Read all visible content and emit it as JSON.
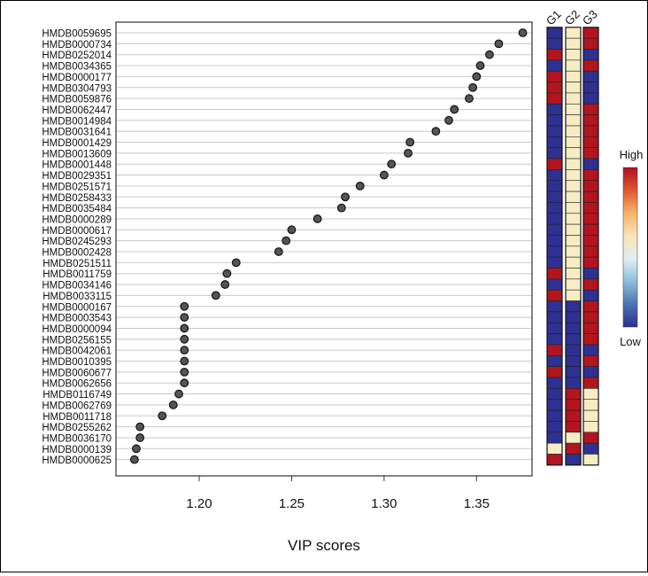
{
  "chart_data": {
    "type": "scatter",
    "xlabel": "VIP scores",
    "xlim": [
      1.155,
      1.38
    ],
    "xticks": [
      1.2,
      1.25,
      1.3,
      1.35
    ],
    "xtick_labels": [
      "1.20",
      "1.25",
      "1.30",
      "1.35"
    ],
    "grid": "horizontal",
    "metabolites": [
      "HMDB0059695",
      "HMDB0000734",
      "HMDB0252014",
      "HMDB0034365",
      "HMDB0000177",
      "HMDB0304793",
      "HMDB0059876",
      "HMDB0062447",
      "HMDB0014984",
      "HMDB0031641",
      "HMDB0001429",
      "HMDB0013609",
      "HMDB0001448",
      "HMDB0029351",
      "HMDB0251571",
      "HMDB0258433",
      "HMDB0035484",
      "HMDB0000289",
      "HMDB0000617",
      "HMDB0245293",
      "HMDB0002428",
      "HMDB0251511",
      "HMDB0011759",
      "HMDB0034146",
      "HMDB0033115",
      "HMDB0000167",
      "HMDB0003543",
      "HMDB0000094",
      "HMDB0256155",
      "HMDB0042061",
      "HMDB0010395",
      "HMDB0060677",
      "HMDB0062656",
      "HMDB0116749",
      "HMDB0062769",
      "HMDB0011718",
      "HMDB0255262",
      "HMDB0036170",
      "HMDB0000139",
      "HMDB0000625"
    ],
    "vip_scores": [
      1.375,
      1.362,
      1.357,
      1.352,
      1.35,
      1.348,
      1.346,
      1.338,
      1.335,
      1.328,
      1.314,
      1.313,
      1.304,
      1.3,
      1.287,
      1.279,
      1.277,
      1.264,
      1.25,
      1.247,
      1.243,
      1.22,
      1.215,
      1.214,
      1.209,
      1.192,
      1.192,
      1.192,
      1.192,
      1.192,
      1.192,
      1.192,
      1.192,
      1.189,
      1.186,
      1.18,
      1.168,
      1.168,
      1.166,
      1.165
    ],
    "heatmap": {
      "columns": [
        "G1",
        "G2",
        "G3"
      ],
      "values": [
        [
          0.1,
          0.5,
          0.9
        ],
        [
          0.1,
          0.5,
          0.9
        ],
        [
          0.9,
          0.5,
          0.1
        ],
        [
          0.1,
          0.5,
          0.9
        ],
        [
          0.9,
          0.5,
          0.1
        ],
        [
          0.9,
          0.5,
          0.1
        ],
        [
          0.9,
          0.5,
          0.1
        ],
        [
          0.1,
          0.5,
          0.9
        ],
        [
          0.1,
          0.5,
          0.9
        ],
        [
          0.1,
          0.5,
          0.9
        ],
        [
          0.1,
          0.5,
          0.9
        ],
        [
          0.1,
          0.5,
          0.9
        ],
        [
          0.9,
          0.5,
          0.1
        ],
        [
          0.1,
          0.5,
          0.9
        ],
        [
          0.1,
          0.5,
          0.9
        ],
        [
          0.1,
          0.5,
          0.9
        ],
        [
          0.1,
          0.5,
          0.9
        ],
        [
          0.1,
          0.5,
          0.9
        ],
        [
          0.1,
          0.5,
          0.9
        ],
        [
          0.1,
          0.5,
          0.9
        ],
        [
          0.1,
          0.5,
          0.9
        ],
        [
          0.1,
          0.5,
          0.9
        ],
        [
          0.9,
          0.5,
          0.1
        ],
        [
          0.1,
          0.5,
          0.9
        ],
        [
          0.9,
          0.5,
          0.1
        ],
        [
          0.1,
          0.1,
          0.9
        ],
        [
          0.1,
          0.1,
          0.9
        ],
        [
          0.1,
          0.1,
          0.9
        ],
        [
          0.1,
          0.1,
          0.9
        ],
        [
          0.9,
          0.1,
          0.1
        ],
        [
          0.1,
          0.1,
          0.9
        ],
        [
          0.9,
          0.1,
          0.1
        ],
        [
          0.1,
          0.1,
          0.9
        ],
        [
          0.1,
          0.9,
          0.5
        ],
        [
          0.1,
          0.9,
          0.5
        ],
        [
          0.1,
          0.9,
          0.5
        ],
        [
          0.1,
          0.9,
          0.5
        ],
        [
          0.1,
          0.5,
          0.9
        ],
        [
          0.5,
          0.9,
          0.1
        ],
        [
          0.9,
          0.1,
          0.5
        ]
      ]
    },
    "legend": {
      "high_label": "High",
      "low_label": "Low",
      "colors": [
        "#2c2f8f",
        "#4a74b4",
        "#8fbedb",
        "#e0eef3",
        "#f9e3b4",
        "#f5b56a",
        "#e0562f",
        "#b0101f"
      ]
    },
    "point_color": "#555555",
    "cell_colors": {
      "low": "#2e3192",
      "mid": "#f8ecc4",
      "high": "#b3151f"
    }
  }
}
